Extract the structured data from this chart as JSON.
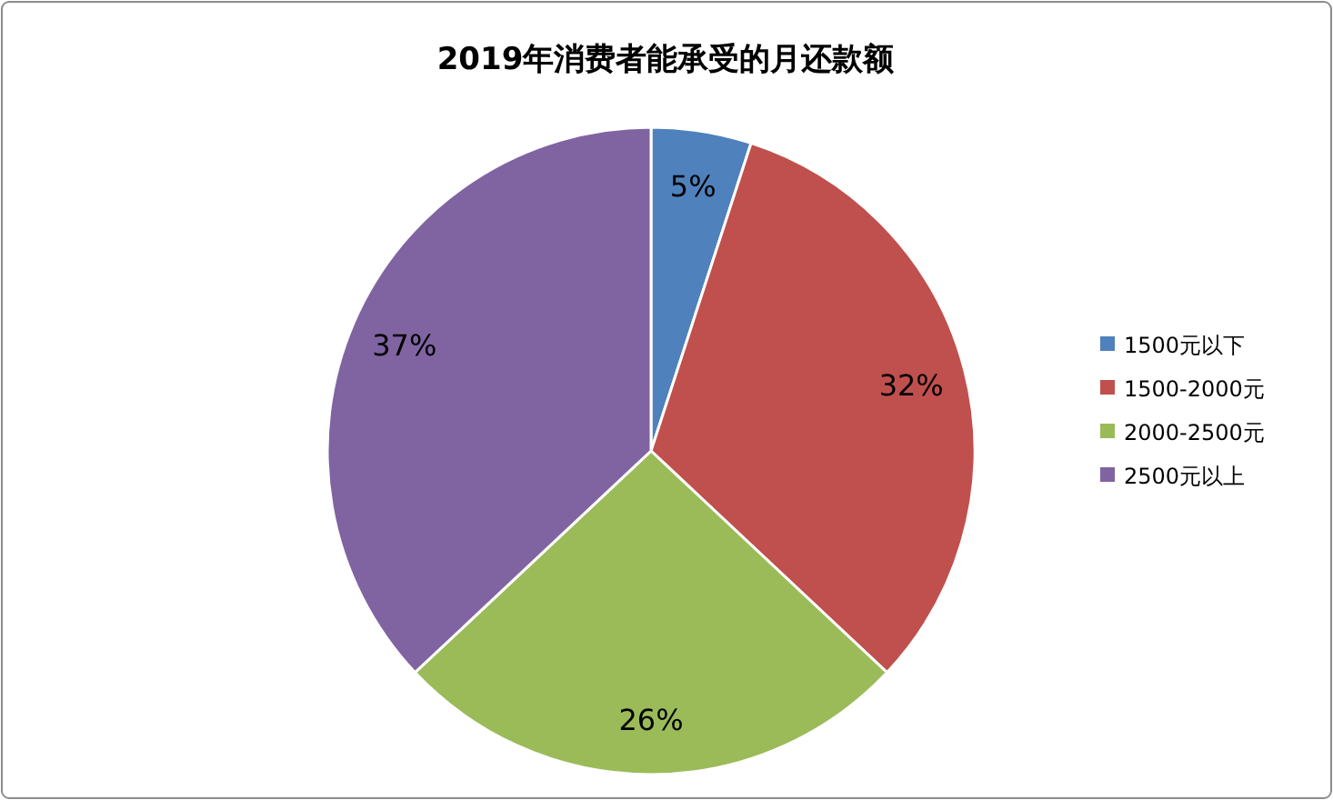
{
  "chart_data": {
    "type": "pie",
    "title": "2019年消费者能承受的月还款额",
    "categories": [
      "1500元以下",
      "1500-2000元",
      "2000-2500元",
      "2500元以上"
    ],
    "values": [
      5,
      32,
      26,
      37
    ],
    "colors": [
      "#4f81bd",
      "#c0504d",
      "#9bbb59",
      "#8064a2"
    ],
    "value_labels": [
      "5%",
      "32%",
      "26%",
      "37%"
    ],
    "legend": "right"
  }
}
